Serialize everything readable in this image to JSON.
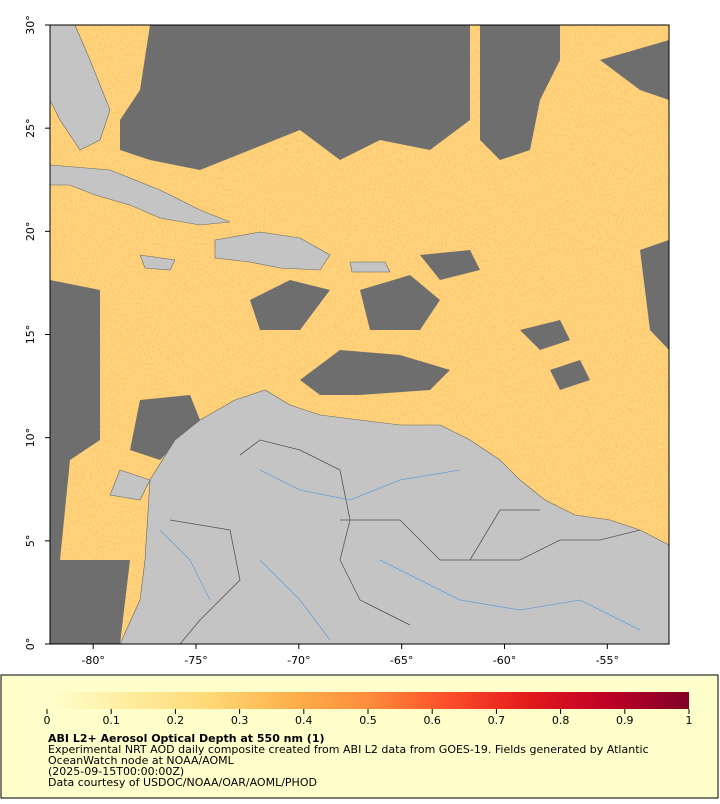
{
  "chart_data": {
    "type": "map",
    "xlim": [
      -82.1,
      -52
    ],
    "ylim": [
      0,
      30
    ],
    "xticks": [
      {
        "value": -80,
        "label": "-80°"
      },
      {
        "value": -75,
        "label": "-75°"
      },
      {
        "value": -70,
        "label": "-70°"
      },
      {
        "value": -65,
        "label": "-65°"
      },
      {
        "value": -60,
        "label": "-60°"
      },
      {
        "value": -55,
        "label": "-55°"
      }
    ],
    "yticks": [
      {
        "value": 0,
        "label": "0°"
      },
      {
        "value": 5,
        "label": "5°"
      },
      {
        "value": 10,
        "label": "10°"
      },
      {
        "value": 15,
        "label": "15°"
      },
      {
        "value": 20,
        "label": "20°"
      },
      {
        "value": 25,
        "label": "25°"
      },
      {
        "value": 30,
        "label": "30°"
      }
    ],
    "colorbar": {
      "lim": [
        0,
        1
      ],
      "ticks": [
        0,
        0.1,
        0.2,
        0.3,
        0.4,
        0.5,
        0.6,
        0.7,
        0.8,
        0.9,
        1
      ],
      "colors": [
        "#ffffcc",
        "#ffeda0",
        "#fed976",
        "#feb24c",
        "#fd8d3c",
        "#fc4e2a",
        "#e31a1c",
        "#bd0026",
        "#800026"
      ]
    },
    "title": "ABI L2+ Aerosol Optical Depth at 550 nm (1)",
    "notes": [
      "Experimental NRT AOD daily composite created from ABI L2 data from GOES-19. Fields generated by Atlantic",
      "OceanWatch node at NOAA/AOML",
      "(2025-09-15T00:00:00Z)",
      "Data courtesy of USDOC/NOAA/OAR/AOML/PHOD"
    ]
  }
}
